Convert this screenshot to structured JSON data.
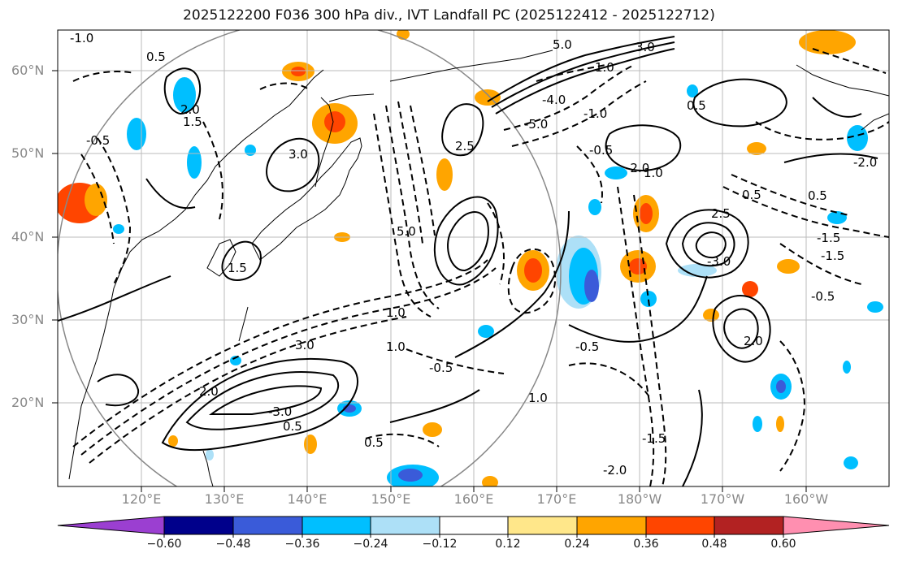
{
  "title": "2025122200 F036 300 hPa div., IVT Landfall PC (2025122412 - 2025122712)",
  "lat_labels": [
    "60°N",
    "50°N",
    "40°N",
    "30°N",
    "20°N"
  ],
  "lon_labels": [
    "120°E",
    "130°E",
    "140°E",
    "150°E",
    "160°E",
    "170°E",
    "180°W",
    "170°W",
    "160°W"
  ],
  "colorbar": {
    "ticks": [
      "−0.60",
      "−0.48",
      "−0.36",
      "−0.24",
      "−0.12",
      "0.12",
      "0.24",
      "0.36",
      "0.48",
      "0.60"
    ],
    "colors": [
      "#9b3fd1",
      "#00008b",
      "#3a5bd9",
      "#00bfff",
      "#ade0f7",
      "#ffffff",
      "#ffe78a",
      "#ffa500",
      "#ff4500",
      "#b22222",
      "#ff8fb0"
    ]
  },
  "contour_labels": [
    "-1.0",
    "1.5",
    "-0.5",
    "2.0",
    "1.0",
    "3.0",
    "-2.0",
    "-3.0",
    "5.0",
    "-5.0",
    "-4.0",
    "0.5",
    "-1.5",
    "2.5"
  ]
}
